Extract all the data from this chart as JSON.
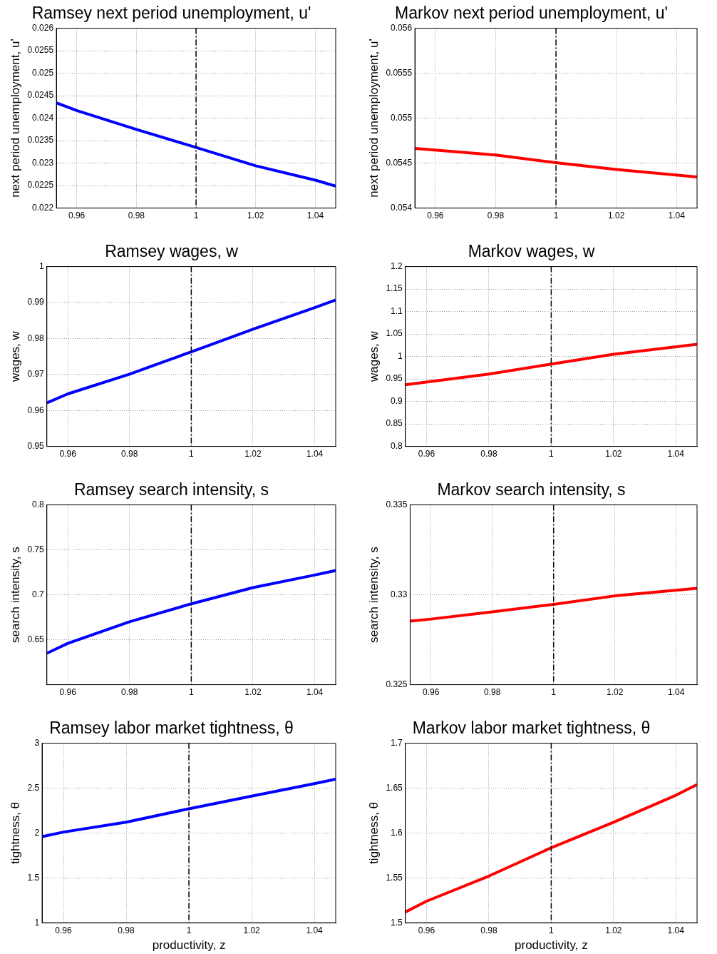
{
  "chart_data": [
    {
      "type": "line",
      "title": "Ramsey next period unemployment, u'",
      "ylabel": "next period unemployment, u'",
      "xlim": [
        0.9532,
        1.0468
      ],
      "xticks": [
        0.96,
        0.98,
        1,
        1.02,
        1.04
      ],
      "ylim": [
        0.022,
        0.026
      ],
      "yticks": [
        0.022,
        0.0225,
        0.023,
        0.0235,
        0.024,
        0.0245,
        0.025,
        0.0255,
        0.026
      ],
      "grid": true,
      "legend": false,
      "line_style": "solid",
      "series": [
        {
          "color": "#0000ff",
          "x": [
            0.9532,
            0.96,
            0.98,
            1,
            1.02,
            1.04,
            1.0468
          ],
          "values": [
            0.02434,
            0.02417,
            0.02375,
            0.02335,
            0.02294,
            0.02262,
            0.02249
          ]
        }
      ],
      "ref_lines": [
        {
          "axis": "x",
          "value": 1,
          "color": "#000000",
          "line_style": "dashed"
        }
      ]
    },
    {
      "type": "line",
      "title": "Markov next period unemployment, u'",
      "ylabel": "next period unemployment, u'",
      "xlim": [
        0.9532,
        1.0468
      ],
      "xticks": [
        0.96,
        0.98,
        1,
        1.02,
        1.04
      ],
      "ylim": [
        0.054,
        0.056
      ],
      "yticks": [
        0.054,
        0.0545,
        0.055,
        0.0555,
        0.056
      ],
      "grid": true,
      "legend": false,
      "line_style": "solid",
      "series": [
        {
          "color": "#ff0000",
          "x": [
            0.9532,
            0.98,
            1,
            1.02,
            1.0468
          ],
          "values": [
            0.054664,
            0.05459,
            0.054504,
            0.05443,
            0.054345
          ]
        }
      ],
      "ref_lines": [
        {
          "axis": "x",
          "value": 1,
          "color": "#000000",
          "line_style": "dashed"
        }
      ]
    },
    {
      "type": "line",
      "title": "Ramsey wages, w",
      "ylabel": "wages, w",
      "xlim": [
        0.9532,
        1.0468
      ],
      "xticks": [
        0.96,
        0.98,
        1,
        1.02,
        1.04
      ],
      "ylim": [
        0.95,
        1
      ],
      "yticks": [
        0.95,
        0.96,
        0.97,
        0.98,
        0.99,
        1
      ],
      "grid": true,
      "legend": false,
      "line_style": "solid",
      "series": [
        {
          "color": "#0000ff",
          "x": [
            0.9532,
            0.96,
            0.98,
            1,
            1.02,
            1.04,
            1.0468
          ],
          "values": [
            0.9621,
            0.9646,
            0.9701,
            0.9763,
            0.9826,
            0.9886,
            0.9907
          ]
        }
      ],
      "ref_lines": [
        {
          "axis": "x",
          "value": 1,
          "color": "#000000",
          "line_style": "dashed"
        }
      ]
    },
    {
      "type": "line",
      "title": "Markov wages, w",
      "ylabel": "wages, w",
      "xlim": [
        0.9532,
        1.0468
      ],
      "xticks": [
        0.96,
        0.98,
        1,
        1.02,
        1.04
      ],
      "ylim": [
        0.8,
        1.2
      ],
      "yticks": [
        0.8,
        0.85,
        0.9,
        0.95,
        1,
        1.05,
        1.1,
        1.15,
        1.2
      ],
      "grid": true,
      "legend": false,
      "line_style": "solid",
      "series": [
        {
          "color": "#ff0000",
          "x": [
            0.9532,
            0.98,
            1,
            1.02,
            1.0468
          ],
          "values": [
            0.937,
            0.961,
            0.983,
            1.005,
            1.027
          ]
        }
      ],
      "ref_lines": [
        {
          "axis": "x",
          "value": 1,
          "color": "#000000",
          "line_style": "dashed"
        }
      ]
    },
    {
      "type": "line",
      "title": "Ramsey search intensity, s",
      "ylabel": "search intensity, s",
      "xlim": [
        0.9532,
        1.0468
      ],
      "xticks": [
        0.96,
        0.98,
        1,
        1.02,
        1.04
      ],
      "ylim": [
        0.6,
        0.8
      ],
      "yticks": [
        0.65,
        0.7,
        0.75,
        0.8
      ],
      "grid": true,
      "legend": false,
      "line_style": "solid",
      "series": [
        {
          "color": "#0000ff",
          "x": [
            0.9532,
            0.96,
            0.98,
            1,
            1.02,
            1.04,
            1.0468
          ],
          "values": [
            0.635,
            0.646,
            0.67,
            0.69,
            0.708,
            0.722,
            0.727
          ]
        }
      ],
      "ref_lines": [
        {
          "axis": "x",
          "value": 1,
          "color": "#000000",
          "line_style": "dashed"
        }
      ]
    },
    {
      "type": "line",
      "title": "Markov search intensity, s",
      "ylabel": "search intensity, s",
      "xlim": [
        0.9532,
        1.0468
      ],
      "xticks": [
        0.96,
        0.98,
        1,
        1.02,
        1.04
      ],
      "ylim": [
        0.325,
        0.335
      ],
      "yticks": [
        0.325,
        0.33,
        0.335
      ],
      "grid": true,
      "legend": false,
      "line_style": "solid",
      "series": [
        {
          "color": "#ff0000",
          "x": [
            0.9532,
            0.96,
            0.98,
            1,
            1.02,
            1.0468
          ],
          "values": [
            0.32854,
            0.32865,
            0.32905,
            0.32947,
            0.32994,
            0.33036
          ]
        }
      ],
      "ref_lines": [
        {
          "axis": "x",
          "value": 1,
          "color": "#000000",
          "line_style": "dashed"
        }
      ]
    },
    {
      "type": "line",
      "title": "Ramsey labor market tightness, θ",
      "xlabel": "productivity, z",
      "ylabel": "tightness, θ",
      "xlim": [
        0.9532,
        1.0468
      ],
      "xticks": [
        0.96,
        0.98,
        1,
        1.02,
        1.04
      ],
      "ylim": [
        1,
        3
      ],
      "yticks": [
        1,
        1.5,
        2,
        2.5,
        3
      ],
      "grid": true,
      "legend": false,
      "line_style": "solid",
      "series": [
        {
          "color": "#0000ff",
          "x": [
            0.9532,
            0.96,
            0.98,
            1,
            1.02,
            1.04,
            1.0468
          ],
          "values": [
            1.96,
            2.01,
            2.12,
            2.27,
            2.41,
            2.55,
            2.6
          ]
        }
      ],
      "ref_lines": [
        {
          "axis": "x",
          "value": 1,
          "color": "#000000",
          "line_style": "dashed"
        }
      ]
    },
    {
      "type": "line",
      "title": "Markov labor market tightness, θ",
      "xlabel": "productivity, z",
      "ylabel": "tightness, θ",
      "xlim": [
        0.9532,
        1.0468
      ],
      "xticks": [
        0.96,
        0.98,
        1,
        1.02,
        1.04
      ],
      "ylim": [
        1.5,
        1.7
      ],
      "yticks": [
        1.5,
        1.55,
        1.6,
        1.65,
        1.7
      ],
      "grid": true,
      "legend": false,
      "line_style": "solid",
      "series": [
        {
          "color": "#ff0000",
          "x": [
            0.9532,
            0.96,
            0.98,
            1,
            1.02,
            1.04,
            1.0468
          ],
          "values": [
            1.512,
            1.524,
            1.552,
            1.5835,
            1.612,
            1.642,
            1.654
          ]
        }
      ],
      "ref_lines": [
        {
          "axis": "x",
          "value": 1,
          "color": "#000000",
          "line_style": "dashed"
        }
      ]
    }
  ]
}
